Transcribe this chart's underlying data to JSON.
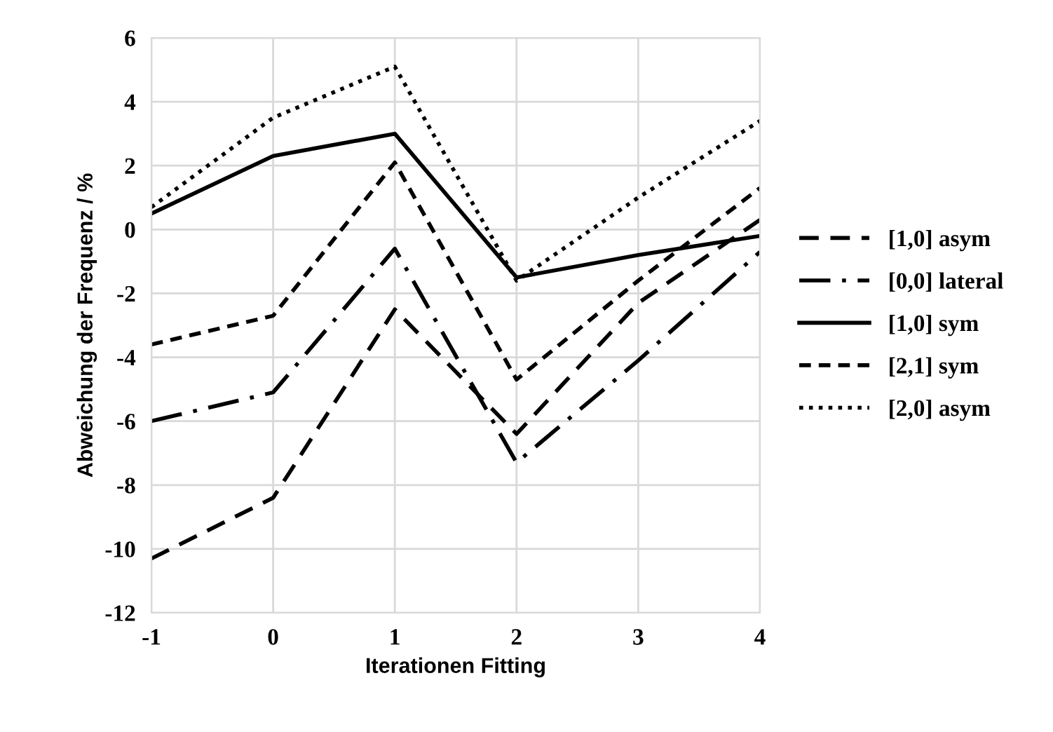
{
  "chart_data": {
    "type": "line",
    "xlabel": "Iterationen Fitting",
    "ylabel": "Abweichung der Frequenz / %",
    "x": [
      -1,
      0,
      1,
      2,
      3,
      4
    ],
    "series": [
      {
        "name": "[1,0] asym",
        "color": "#000000",
        "line_style": "dashed",
        "values": [
          -10.3,
          -8.4,
          -2.5,
          -6.4,
          -2.3,
          0.3
        ]
      },
      {
        "name": "[0,0] lateral",
        "color": "#000000",
        "line_style": "dashdot",
        "values": [
          -6.0,
          -5.1,
          -0.6,
          -7.3,
          -4.1,
          -0.7
        ]
      },
      {
        "name": "[1,0] sym",
        "color": "#000000",
        "line_style": "solid",
        "values": [
          0.5,
          2.3,
          3.0,
          -1.5,
          -0.8,
          -0.2
        ]
      },
      {
        "name": "[2,1] sym",
        "color": "#000000",
        "line_style": "shortdash",
        "values": [
          -3.6,
          -2.7,
          2.1,
          -4.7,
          -1.6,
          1.3
        ]
      },
      {
        "name": "[2,0] asym",
        "color": "#000000",
        "line_style": "dotted",
        "values": [
          0.7,
          3.5,
          5.1,
          -1.6,
          1.0,
          3.4
        ]
      }
    ],
    "xlim": [
      -1,
      4
    ],
    "xticks": [
      -1,
      0,
      1,
      2,
      3,
      4
    ],
    "ylim": [
      -12,
      6
    ],
    "yticks": [
      -12,
      -10,
      -8,
      -6,
      -4,
      -2,
      0,
      2,
      4,
      6
    ],
    "grid": true,
    "legend": "right",
    "marker": "none"
  }
}
